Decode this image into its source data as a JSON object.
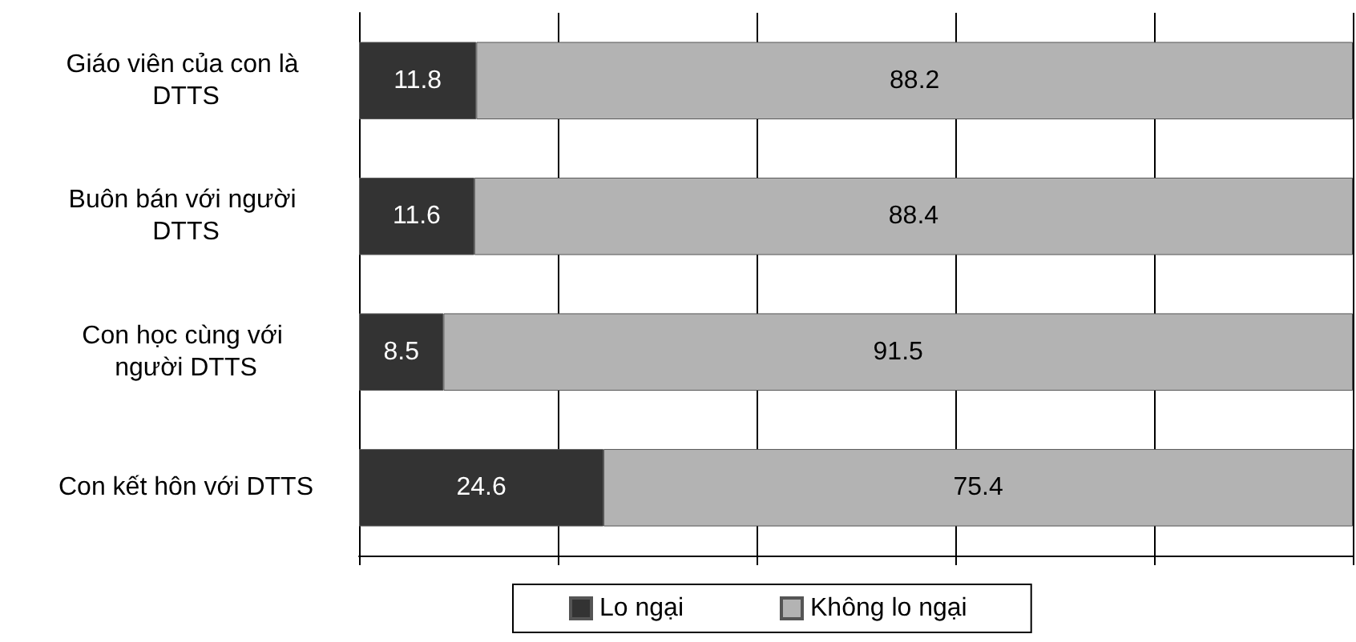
{
  "chart_data": {
    "type": "bar",
    "orientation": "horizontal",
    "stacked": true,
    "categories": [
      "Giáo viên của con là DTTS",
      "Buôn bán với người DTTS",
      "Con học cùng với người DTTS",
      "Con kết hôn với DTTS"
    ],
    "series": [
      {
        "name": "Lo ngại",
        "color": "#333333",
        "values": [
          11.8,
          11.6,
          8.5,
          24.6
        ]
      },
      {
        "name": "Không lo ngại",
        "color": "#b3b3b3",
        "values": [
          88.2,
          88.4,
          91.5,
          75.4
        ]
      }
    ],
    "xlim": [
      0,
      100
    ],
    "tick_labels": "y",
    "grid": "x",
    "data_labels": true,
    "legend": "bottom"
  }
}
